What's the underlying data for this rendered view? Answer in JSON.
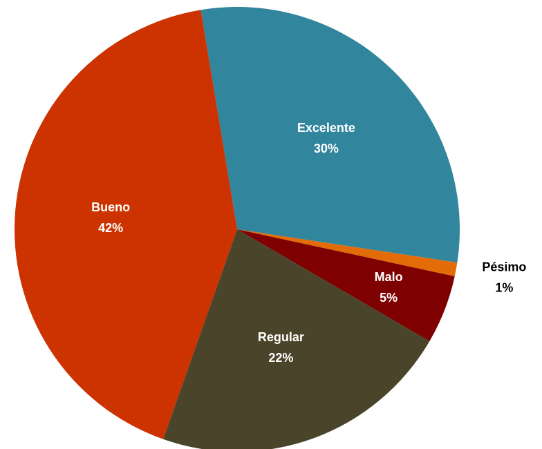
{
  "chart_data": {
    "type": "pie",
    "categories": [
      "Excelente",
      "Pésimo",
      "Malo",
      "Regular",
      "Bueno"
    ],
    "values": [
      30,
      1,
      5,
      22,
      42
    ],
    "value_labels": [
      "30%",
      "1%",
      "5%",
      "22%",
      "42%"
    ],
    "colors": [
      "#31859c",
      "#e36c09",
      "#7f0000",
      "#4a452a",
      "#cc3300"
    ]
  }
}
